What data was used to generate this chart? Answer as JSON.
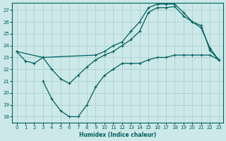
{
  "bg_color": "#cce8e8",
  "line_color": "#006060",
  "grid_color": "#a8cccc",
  "xlabel": "Humidex (Indice chaleur)",
  "xlim": [
    -0.5,
    23.5
  ],
  "ylim": [
    17.5,
    27.6
  ],
  "yticks": [
    18,
    19,
    20,
    21,
    22,
    23,
    24,
    25,
    26,
    27
  ],
  "xticks": [
    0,
    1,
    2,
    3,
    4,
    5,
    6,
    7,
    8,
    9,
    10,
    11,
    12,
    13,
    14,
    15,
    16,
    17,
    18,
    19,
    20,
    21,
    22,
    23
  ],
  "curve1_x": [
    0,
    1,
    2,
    3,
    4,
    5,
    6,
    7,
    8,
    9,
    10,
    11,
    12,
    13,
    14,
    15,
    16,
    17,
    18,
    19,
    20,
    21,
    22,
    23
  ],
  "curve1_y": [
    23.5,
    22.7,
    22.5,
    23.0,
    22.0,
    21.2,
    20.8,
    21.5,
    22.2,
    22.8,
    23.2,
    23.5,
    24.0,
    24.5,
    25.2,
    26.8,
    27.2,
    27.2,
    27.3,
    26.5,
    26.0,
    25.7,
    23.6,
    22.8
  ],
  "curve2_x": [
    0,
    3,
    9,
    10,
    11,
    12,
    13,
    14,
    15,
    16,
    17,
    18,
    19,
    20,
    21,
    22,
    23
  ],
  "curve2_y": [
    23.5,
    23.0,
    23.2,
    23.5,
    24.0,
    24.3,
    25.2,
    26.0,
    27.2,
    27.5,
    27.5,
    27.5,
    26.8,
    26.0,
    25.5,
    23.8,
    22.8
  ],
  "curve3_x": [
    3,
    4,
    5,
    6,
    7,
    8,
    9,
    10,
    11,
    12,
    13,
    14,
    15,
    16,
    17,
    18,
    19,
    20,
    21,
    22,
    23
  ],
  "curve3_y": [
    21.0,
    19.5,
    18.5,
    18.0,
    18.0,
    19.0,
    20.5,
    21.5,
    22.0,
    22.5,
    22.5,
    22.5,
    22.8,
    23.0,
    23.0,
    23.2,
    23.2,
    23.2,
    23.2,
    23.2,
    22.8
  ]
}
